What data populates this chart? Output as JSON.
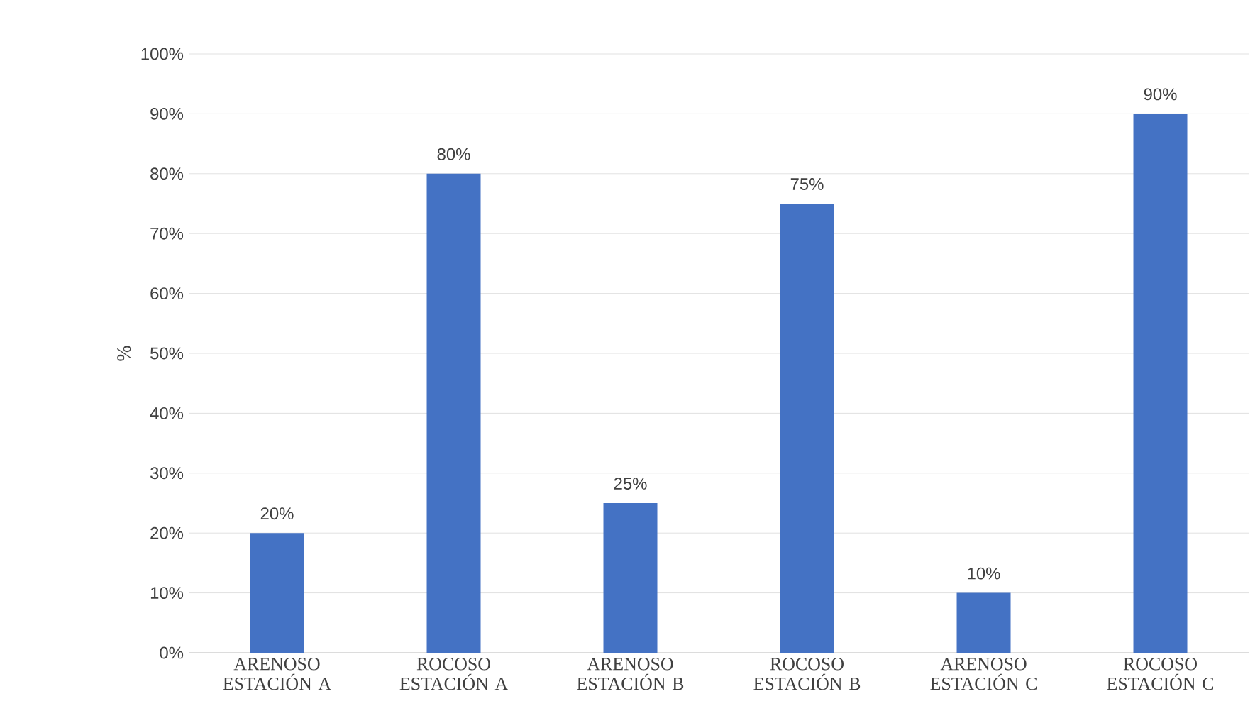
{
  "chart_data": {
    "type": "bar",
    "ylabel": "%",
    "categories": [
      "ARENOSO ESTACIÓN A",
      "ROCOSO ESTACIÓN A",
      "ARENOSO ESTACIÓN B",
      "ROCOSO ESTACIÓN B",
      "ARENOSO ESTACIÓN C",
      "ROCOSO ESTACIÓN C"
    ],
    "values": [
      20,
      80,
      25,
      75,
      10,
      90
    ],
    "value_labels": [
      "20%",
      "80%",
      "25%",
      "75%",
      "10%",
      "90%"
    ],
    "color": "#4472c4",
    "ylim": [
      0,
      100
    ],
    "yticks": [
      {
        "value": 0,
        "label": "0%"
      },
      {
        "value": 10,
        "label": "10%"
      },
      {
        "value": 20,
        "label": "20%"
      },
      {
        "value": 30,
        "label": "30%"
      },
      {
        "value": 40,
        "label": "40%"
      },
      {
        "value": 50,
        "label": "50%"
      },
      {
        "value": 60,
        "label": "60%"
      },
      {
        "value": 70,
        "label": "70%"
      },
      {
        "value": 80,
        "label": "80%"
      },
      {
        "value": 90,
        "label": "90%"
      },
      {
        "value": 100,
        "label": "100%"
      }
    ],
    "grid": "y"
  }
}
